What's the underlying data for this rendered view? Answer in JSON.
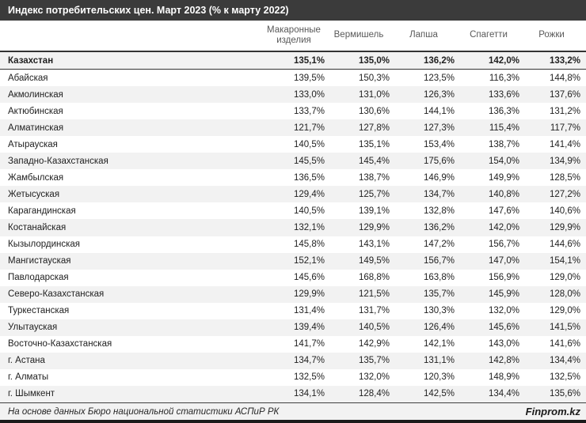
{
  "title_bar": {
    "title": "Индекс потребительских цен. Март 2023 (% к марту 2022)"
  },
  "chart_data": {
    "type": "table",
    "title": "Индекс потребительских цен. Март 2023 (% к марту 2022)",
    "unit": "% к марту 2022",
    "value_format": "comma-decimal-percent",
    "columns": [
      "Макаронные изделия",
      "Вермишель",
      "Лапша",
      "Спагетти",
      "Рожки"
    ],
    "rows": [
      {
        "region": "Казахстан",
        "emphasis": true,
        "values": [
          135.1,
          135.0,
          136.2,
          142.0,
          133.2
        ]
      },
      {
        "region": "Абайская",
        "emphasis": false,
        "values": [
          139.5,
          150.3,
          123.5,
          116.3,
          144.8
        ]
      },
      {
        "region": "Акмолинская",
        "emphasis": false,
        "values": [
          133.0,
          131.0,
          126.3,
          133.6,
          137.6
        ]
      },
      {
        "region": "Актюбинская",
        "emphasis": false,
        "values": [
          133.7,
          130.6,
          144.1,
          136.3,
          131.2
        ]
      },
      {
        "region": "Алматинская",
        "emphasis": false,
        "values": [
          121.7,
          127.8,
          127.3,
          115.4,
          117.7
        ]
      },
      {
        "region": "Атырауская",
        "emphasis": false,
        "values": [
          140.5,
          135.1,
          153.4,
          138.7,
          141.4
        ]
      },
      {
        "region": "Западно-Казахстанская",
        "emphasis": false,
        "values": [
          145.5,
          145.4,
          175.6,
          154.0,
          134.9
        ]
      },
      {
        "region": "Жамбылская",
        "emphasis": false,
        "values": [
          136.5,
          138.7,
          146.9,
          149.9,
          128.5
        ]
      },
      {
        "region": "Жетысуская",
        "emphasis": false,
        "values": [
          129.4,
          125.7,
          134.7,
          140.8,
          127.2
        ]
      },
      {
        "region": "Карагандинская",
        "emphasis": false,
        "values": [
          140.5,
          139.1,
          132.8,
          147.6,
          140.6
        ]
      },
      {
        "region": "Костанайская",
        "emphasis": false,
        "values": [
          132.1,
          129.9,
          136.2,
          142.0,
          129.9
        ]
      },
      {
        "region": "Кызылординская",
        "emphasis": false,
        "values": [
          145.8,
          143.1,
          147.2,
          156.7,
          144.6
        ]
      },
      {
        "region": "Мангистауская",
        "emphasis": false,
        "values": [
          152.1,
          149.5,
          156.7,
          147.0,
          154.1
        ]
      },
      {
        "region": "Павлодарская",
        "emphasis": false,
        "values": [
          145.6,
          168.8,
          163.8,
          156.9,
          129.0
        ]
      },
      {
        "region": "Северо-Казахстанская",
        "emphasis": false,
        "values": [
          129.9,
          121.5,
          135.7,
          145.9,
          128.0
        ]
      },
      {
        "region": "Туркестанская",
        "emphasis": false,
        "values": [
          131.4,
          131.7,
          130.3,
          132.0,
          129.0
        ]
      },
      {
        "region": "Улытауская",
        "emphasis": false,
        "values": [
          139.4,
          140.5,
          126.4,
          145.6,
          141.5
        ]
      },
      {
        "region": "Восточно-Казахстанская",
        "emphasis": false,
        "values": [
          141.7,
          142.9,
          142.1,
          143.0,
          141.6
        ]
      },
      {
        "region": "г. Астана",
        "emphasis": false,
        "values": [
          134.7,
          135.7,
          131.1,
          142.8,
          134.4
        ]
      },
      {
        "region": "г. Алматы",
        "emphasis": false,
        "values": [
          132.5,
          132.0,
          120.3,
          148.9,
          132.5
        ]
      },
      {
        "region": "г. Шымкент",
        "emphasis": false,
        "values": [
          134.1,
          128.4,
          142.5,
          134.4,
          135.6
        ]
      }
    ]
  },
  "footer": {
    "source": "На основе данных Бюро национальной статистики АСПиР РК",
    "brand": "Finprom.kz"
  },
  "colors": {
    "title_bar_bg": "#3b3b3b",
    "title_text": "#ffffff",
    "header_text": "#595959",
    "body_text": "#1f1f1f",
    "stripe_bg": "#f2f2f2",
    "border_dark": "#333333",
    "footer_bg": "#f2f2f2",
    "bottom_bar": "#1a1a1a"
  }
}
